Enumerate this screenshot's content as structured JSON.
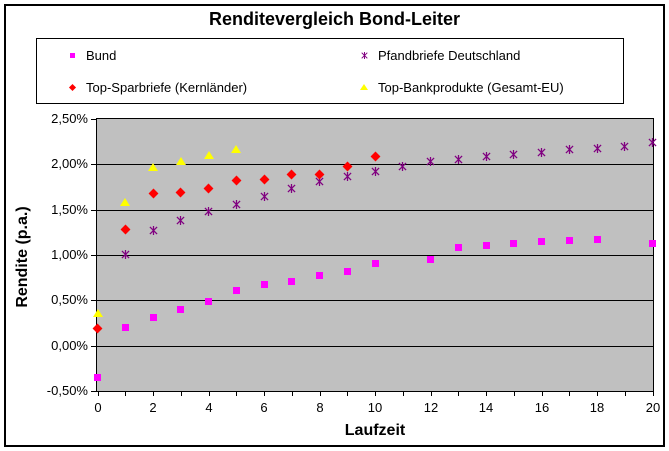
{
  "chart_data": {
    "type": "scatter",
    "title": "Renditevergleich Bond-Leiter",
    "xlabel": "Laufzeit",
    "ylabel": "Rendite (p.a.)",
    "xlim": [
      0,
      20
    ],
    "ylim_percent": [
      -0.5,
      2.5
    ],
    "grid": "horizontal-black",
    "legend_position": "top-two-columns",
    "plot_background": "#C0C0C0",
    "frame_border_color": "#000000",
    "y_ticks": [
      {
        "value": 2.5,
        "label": "2,50%"
      },
      {
        "value": 2.0,
        "label": "2,00%"
      },
      {
        "value": 1.5,
        "label": "1,50%"
      },
      {
        "value": 1.0,
        "label": "1,00%"
      },
      {
        "value": 0.5,
        "label": "0,50%"
      },
      {
        "value": 0.0,
        "label": "0,00%"
      },
      {
        "value": -0.5,
        "label": "-0,50%"
      }
    ],
    "x_minor_ticks": [
      0,
      1,
      2,
      3,
      4,
      5,
      6,
      7,
      8,
      9,
      10,
      11,
      12,
      13,
      14,
      15,
      16,
      17,
      18,
      19,
      20
    ],
    "x_labels": [
      {
        "value": 0,
        "label": "0"
      },
      {
        "value": 2,
        "label": "2"
      },
      {
        "value": 4,
        "label": "4"
      },
      {
        "value": 6,
        "label": "6"
      },
      {
        "value": 8,
        "label": "8"
      },
      {
        "value": 10,
        "label": "10"
      },
      {
        "value": 12,
        "label": "12"
      },
      {
        "value": 14,
        "label": "14"
      },
      {
        "value": 16,
        "label": "16"
      },
      {
        "value": 18,
        "label": "18"
      },
      {
        "value": 20,
        "label": "20"
      }
    ],
    "series": [
      {
        "name": "Bund",
        "marker": "square",
        "color": "#FF00FF",
        "points": [
          [
            0,
            -0.28
          ],
          [
            1,
            0.27
          ],
          [
            2,
            0.38
          ],
          [
            3,
            0.46
          ],
          [
            4,
            0.55
          ],
          [
            5,
            0.67
          ],
          [
            6,
            0.74
          ],
          [
            7,
            0.77
          ],
          [
            8,
            0.84
          ],
          [
            9,
            0.88
          ],
          [
            10,
            0.97
          ],
          [
            12,
            1.02
          ],
          [
            13,
            1.15
          ],
          [
            14,
            1.17
          ],
          [
            15,
            1.19
          ],
          [
            16,
            1.22
          ],
          [
            17,
            1.23
          ],
          [
            18,
            1.24
          ],
          [
            20,
            1.19
          ]
        ]
      },
      {
        "name": "Pfandbriefe Deutschland",
        "marker": "star",
        "color": "#800080",
        "points": [
          [
            1,
            1.05
          ],
          [
            2,
            1.31
          ],
          [
            3,
            1.43
          ],
          [
            4,
            1.52
          ],
          [
            5,
            1.6
          ],
          [
            6,
            1.69
          ],
          [
            7,
            1.78
          ],
          [
            8,
            1.85
          ],
          [
            9,
            1.91
          ],
          [
            10,
            1.97
          ],
          [
            11,
            2.02
          ],
          [
            12,
            2.08
          ],
          [
            13,
            2.1
          ],
          [
            14,
            2.13
          ],
          [
            15,
            2.15
          ],
          [
            16,
            2.18
          ],
          [
            17,
            2.21
          ],
          [
            18,
            2.22
          ],
          [
            19,
            2.24
          ],
          [
            20,
            2.29
          ]
        ]
      },
      {
        "name": "Top-Sparbriefe (Kernländer)",
        "marker": "diamond",
        "color": "#FF0000",
        "points": [
          [
            0,
            0.26
          ],
          [
            1,
            1.35
          ],
          [
            2,
            1.74
          ],
          [
            3,
            1.76
          ],
          [
            4,
            1.8
          ],
          [
            5,
            1.89
          ],
          [
            6,
            1.9
          ],
          [
            7,
            1.95
          ],
          [
            8,
            1.95
          ],
          [
            9,
            2.04
          ],
          [
            10,
            2.15
          ]
        ]
      },
      {
        "name": "Top-Bankprodukte (Gesamt-EU)",
        "marker": "triangle",
        "color": "#FFFF00",
        "points": [
          [
            0,
            0.41
          ],
          [
            1,
            1.64
          ],
          [
            2,
            2.03
          ],
          [
            3,
            2.09
          ],
          [
            4,
            2.16
          ],
          [
            5,
            2.22
          ]
        ]
      }
    ],
    "legend_order": [
      0,
      1,
      2,
      3
    ]
  }
}
